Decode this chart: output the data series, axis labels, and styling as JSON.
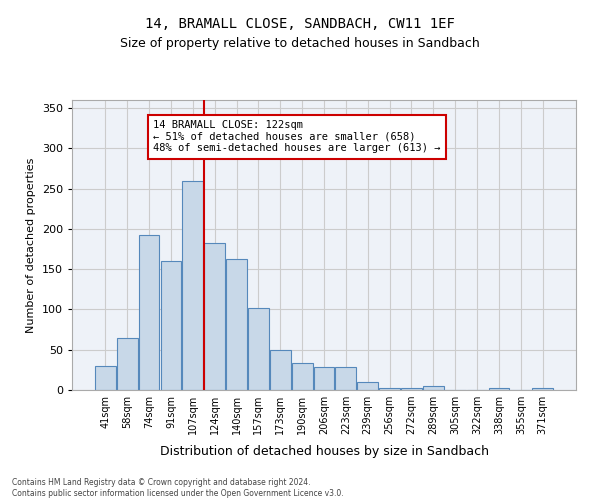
{
  "title": "14, BRAMALL CLOSE, SANDBACH, CW11 1EF",
  "subtitle": "Size of property relative to detached houses in Sandbach",
  "xlabel": "Distribution of detached houses by size in Sandbach",
  "ylabel": "Number of detached properties",
  "categories": [
    "41sqm",
    "58sqm",
    "74sqm",
    "91sqm",
    "107sqm",
    "124sqm",
    "140sqm",
    "157sqm",
    "173sqm",
    "190sqm",
    "206sqm",
    "223sqm",
    "239sqm",
    "256sqm",
    "272sqm",
    "289sqm",
    "305sqm",
    "322sqm",
    "338sqm",
    "355sqm",
    "371sqm"
  ],
  "values": [
    30,
    65,
    193,
    160,
    260,
    183,
    163,
    102,
    50,
    33,
    29,
    29,
    10,
    3,
    3,
    5,
    0,
    0,
    3,
    0,
    2
  ],
  "bar_color": "#c8d8e8",
  "bar_edge_color": "#5588bb",
  "vline_x": 5,
  "vline_color": "#cc0000",
  "annotation_text": "14 BRAMALL CLOSE: 122sqm\n← 51% of detached houses are smaller (658)\n48% of semi-detached houses are larger (613) →",
  "annotation_box_color": "#ffffff",
  "annotation_box_edge_color": "#cc0000",
  "ylim": [
    0,
    360
  ],
  "yticks": [
    0,
    50,
    100,
    150,
    200,
    250,
    300,
    350
  ],
  "grid_color": "#cccccc",
  "bg_color": "#eef2f8",
  "footer_line1": "Contains HM Land Registry data © Crown copyright and database right 2024.",
  "footer_line2": "Contains public sector information licensed under the Open Government Licence v3.0."
}
